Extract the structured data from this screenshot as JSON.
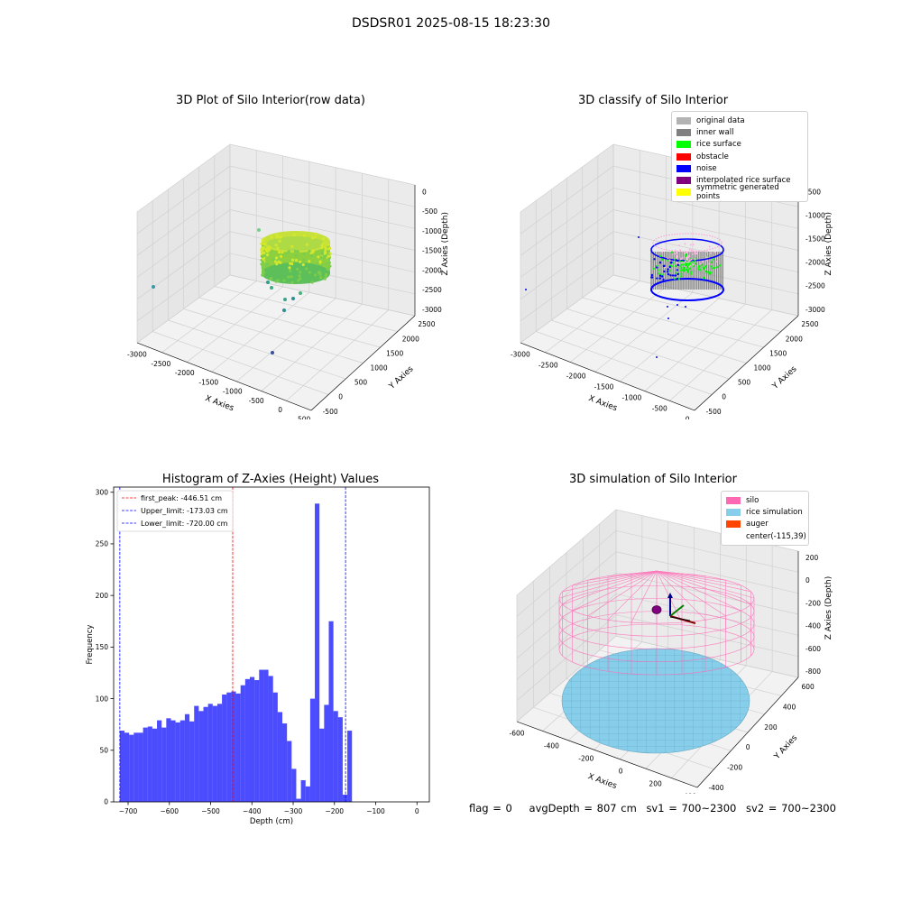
{
  "figure": {
    "suptitle": "DSDSR01 2025-08-15 18:23:30"
  },
  "panels": {
    "raw": {
      "title": "3D Plot of Silo Interior(row data)",
      "xlabel": "X Axies",
      "ylabel": "Y Axies",
      "zlabel": "Z Axies (Depth)",
      "xticks": [
        "-3000",
        "-2500",
        "-2000",
        "-1500",
        "-1000",
        "-500",
        "0",
        "500"
      ],
      "yticks": [
        "-500",
        "0",
        "500",
        "1000",
        "1500",
        "2000",
        "2500"
      ],
      "zticks": [
        "0",
        "-500",
        "-1000",
        "-1500",
        "-2000",
        "-2500",
        "-3000"
      ]
    },
    "classify": {
      "title": "3D classify of Silo Interior",
      "xlabel": "X Axies",
      "ylabel": "Y Axies",
      "zlabel": "Z Axies (Depth)",
      "xticks": [
        "-3000",
        "-2500",
        "-2000",
        "-1500",
        "-1000",
        "-500",
        "0"
      ],
      "yticks": [
        "-500",
        "0",
        "500",
        "1000",
        "1500",
        "2000",
        "2500"
      ],
      "zticks": [
        "-500",
        "-1000",
        "-1500",
        "-2000",
        "-2500",
        "-3000"
      ],
      "legend": [
        {
          "label": "original data",
          "color": "#b3b3b3"
        },
        {
          "label": "inner wall",
          "color": "#808080"
        },
        {
          "label": "rice surface",
          "color": "#00ff00"
        },
        {
          "label": "obstacle",
          "color": "#ff0000"
        },
        {
          "label": "noise",
          "color": "#0000ff"
        },
        {
          "label": "interpolated rice surface",
          "color": "#800080"
        },
        {
          "label": "symmetric generated points",
          "color": "#ffff00"
        }
      ]
    },
    "histogram": {
      "title": "Histogram of Z-Axies (Height) Values",
      "xlabel": "Depth (cm)",
      "ylabel": "Frequency",
      "legend": [
        {
          "label": "first_peak: -446.51 cm",
          "color": "#ff0000"
        },
        {
          "label": "Upper_limit: -173.03 cm",
          "color": "#0000ff"
        },
        {
          "label": "Lower_limit: -720.00 cm",
          "color": "#0000ff"
        }
      ]
    },
    "simulation": {
      "title": "3D simulation of Silo Interior",
      "xlabel": "X Axies",
      "ylabel": "Y Axies",
      "zlabel": "Z Axies (Depth)",
      "xticks": [
        "-600",
        "-400",
        "-200",
        "0",
        "200",
        "400"
      ],
      "yticks": [
        "-400",
        "-200",
        "0",
        "200",
        "400",
        "600"
      ],
      "zticks": [
        "200",
        "0",
        "-200",
        "-400",
        "-600",
        "-800"
      ],
      "legend": [
        {
          "label": "silo",
          "color": "#ff69b4"
        },
        {
          "label": "rice simulation",
          "color": "#87ceeb"
        },
        {
          "label": "auger",
          "color": "#ff4500"
        },
        {
          "label": "center(-115,39)",
          "color": "#ffffff"
        }
      ]
    }
  },
  "status": {
    "flag": "flag = 0",
    "avg_depth": "avgDepth = 807 cm",
    "sv1": "sv1 = 700~2300",
    "sv2": "sv2 = 700~2300"
  },
  "chart_data": {
    "type": "bar",
    "title": "Histogram of Z-Axies (Height) Values",
    "xlabel": "Depth (cm)",
    "ylabel": "Frequency",
    "xlim": [
      -735,
      30
    ],
    "ylim": [
      0,
      305
    ],
    "xticks": [
      -700,
      -600,
      -500,
      -400,
      -300,
      -200,
      -100,
      0
    ],
    "yticks": [
      0,
      50,
      100,
      150,
      200,
      250,
      300
    ],
    "bin_start": -720,
    "bin_width": 11.25,
    "values": [
      69,
      67,
      65,
      67,
      67,
      72,
      73,
      71,
      79,
      72,
      81,
      79,
      77,
      79,
      85,
      78,
      93,
      88,
      92,
      95,
      93,
      95,
      104,
      106,
      107,
      105,
      113,
      119,
      121,
      118,
      128,
      128,
      122,
      106,
      87,
      76,
      59,
      32,
      3,
      21,
      15,
      100,
      289,
      71,
      94,
      175,
      88,
      82,
      7,
      69
    ],
    "bar_color": "#0000ff",
    "vlines": [
      {
        "label": "first_peak: -446.51 cm",
        "x": -446.51,
        "color": "#ff0000"
      },
      {
        "label": "Upper_limit: -173.03 cm",
        "x": -173.03,
        "color": "#0000ff"
      },
      {
        "label": "Lower_limit: -720.00 cm",
        "x": -720.0,
        "color": "#0000ff"
      }
    ],
    "legend_position": "upper left"
  }
}
